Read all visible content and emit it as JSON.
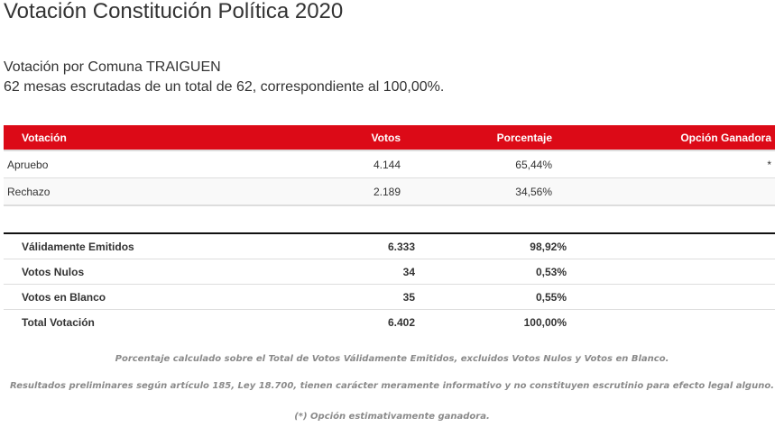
{
  "page": {
    "title": "Votación Constitución Política 2020",
    "subtitle_line1": "Votación por Comuna TRAIGUEN",
    "subtitle_line2": "62 mesas escrutadas de un total de 62, correspondiente al 100,00%."
  },
  "colors": {
    "header_bg": "#dc0a17",
    "header_text": "#ffffff",
    "row_alt_bg": "#f9f9f9",
    "note_text": "#8a8a8a"
  },
  "results_table": {
    "headers": {
      "option": "Votación",
      "votes": "Votos",
      "percent": "Porcentaje",
      "winner": "Opción Ganadora"
    },
    "rows": [
      {
        "option": "Apruebo",
        "votes": "4.144",
        "percent": "65,44%",
        "winner": "*"
      },
      {
        "option": "Rechazo",
        "votes": "2.189",
        "percent": "34,56%",
        "winner": ""
      }
    ]
  },
  "summary_table": {
    "rows": [
      {
        "label": "Válidamente Emitidos",
        "votes": "6.333",
        "percent": "98,92%"
      },
      {
        "label": "Votos Nulos",
        "votes": "34",
        "percent": "0,53%"
      },
      {
        "label": "Votos en Blanco",
        "votes": "35",
        "percent": "0,55%"
      },
      {
        "label": "Total Votación",
        "votes": "6.402",
        "percent": "100,00%"
      }
    ]
  },
  "notes": [
    "Porcentaje calculado sobre el Total de Votos Válidamente Emitidos, excluidos Votos Nulos y Votos en Blanco.",
    "Resultados preliminares según artículo 185, Ley 18.700, tienen carácter meramente informativo y no constituyen escrutinio para efecto legal alguno.",
    "(*) Opción estimativamente ganadora."
  ]
}
